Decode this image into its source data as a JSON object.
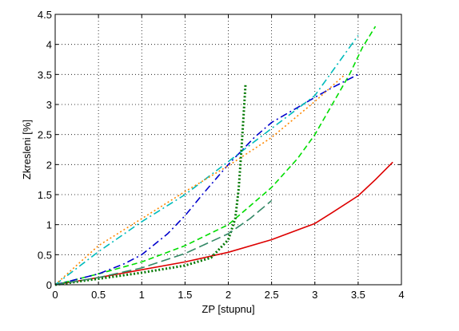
{
  "chart_data": {
    "type": "line",
    "xlabel": "ZP [stupnu]",
    "ylabel": "Zkresleni [%]",
    "xlim": [
      0,
      4
    ],
    "ylim": [
      0,
      4.5
    ],
    "xticks": [
      "0",
      "0.5",
      "1",
      "1.5",
      "2",
      "2.5",
      "3",
      "3.5",
      "4"
    ],
    "yticks": [
      "0",
      "0.5",
      "1",
      "1.5",
      "2",
      "2.5",
      "3",
      "3.5",
      "4",
      "4.5"
    ],
    "grid": true,
    "legend": "none",
    "series": [
      {
        "color": "#dd0000",
        "style": "solid",
        "x": [
          0,
          0.5,
          1,
          1.5,
          2,
          2.5,
          3,
          3.2,
          3.5,
          3.7,
          3.9
        ],
        "y": [
          0,
          0.12,
          0.25,
          0.38,
          0.54,
          0.75,
          1.02,
          1.2,
          1.48,
          1.75,
          2.04
        ]
      },
      {
        "color": "#00dd00",
        "style": "dashed",
        "x": [
          0,
          0.5,
          1,
          1.5,
          2,
          2.5,
          2.8,
          3,
          3.2,
          3.4,
          3.55,
          3.7
        ],
        "y": [
          0,
          0.18,
          0.38,
          0.65,
          1.0,
          1.62,
          2.1,
          2.5,
          3.0,
          3.5,
          3.95,
          4.3
        ]
      },
      {
        "color": "#0000cc",
        "style": "dashdot",
        "x": [
          0,
          0.5,
          0.8,
          1,
          1.3,
          1.5,
          1.7,
          2,
          2.3,
          2.5,
          2.8,
          3,
          3.2,
          3.5
        ],
        "y": [
          0,
          0.18,
          0.35,
          0.5,
          0.85,
          1.15,
          1.5,
          2.0,
          2.45,
          2.7,
          2.95,
          3.12,
          3.28,
          3.5
        ]
      },
      {
        "color": "#00bbbb",
        "style": "dashdot",
        "x": [
          0,
          0.5,
          1,
          1.5,
          2,
          2.5,
          3,
          3.5
        ],
        "y": [
          0,
          0.55,
          1.05,
          1.5,
          2.05,
          2.6,
          3.15,
          4.15
        ]
      },
      {
        "color": "#ff8800",
        "style": "dotted",
        "x": [
          0,
          0.5,
          1,
          1.5,
          2,
          2.5,
          3,
          3.35
        ],
        "y": [
          0,
          0.65,
          1.1,
          1.55,
          1.98,
          2.45,
          3.05,
          3.5
        ]
      },
      {
        "color": "#007700",
        "style": "dotted-thick",
        "x": [
          0,
          0.5,
          1,
          1.5,
          1.8,
          2,
          2.08,
          2.12,
          2.15,
          2.18,
          2.2
        ],
        "y": [
          0,
          0.1,
          0.2,
          0.32,
          0.45,
          0.75,
          1.1,
          1.6,
          2.2,
          2.9,
          3.35
        ]
      },
      {
        "color": "#338866",
        "style": "longdash",
        "x": [
          0,
          0.5,
          1,
          1.5,
          2,
          2.25,
          2.5
        ],
        "y": [
          0,
          0.12,
          0.28,
          0.52,
          0.85,
          1.1,
          1.4
        ]
      }
    ]
  }
}
